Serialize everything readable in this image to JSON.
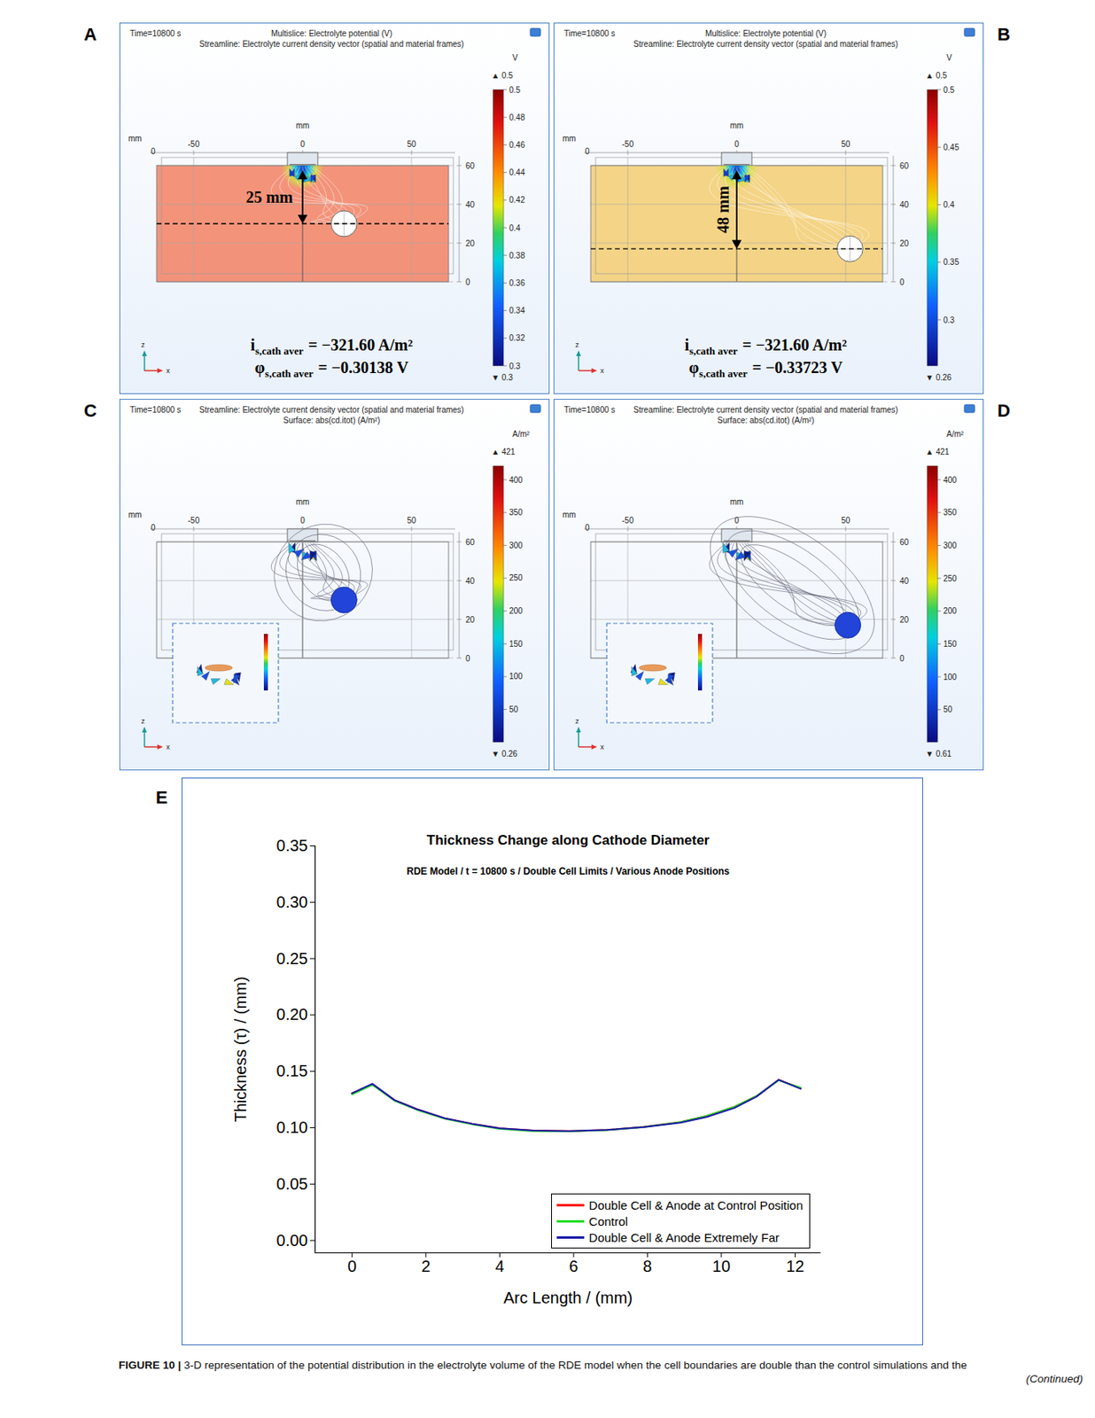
{
  "figure": {
    "panels": [
      {
        "letter": "A",
        "time": "Time=10800 s",
        "title_lines": [
          "Multislice: Electrolyte potential (V)",
          "Streamline: Electrolyte current density vector (spatial and material frames)"
        ],
        "x_axis": {
          "label": "mm",
          "ticks": [
            -50,
            0,
            50
          ]
        },
        "corner": {
          "label": "mm",
          "tick": 0
        },
        "z_ticks": [
          0,
          20,
          40,
          60
        ],
        "colorbar": {
          "unit": "V",
          "max": 0.5,
          "max_label": "▲ 0.5",
          "min": 0.3,
          "min_label": "▼ 0.3",
          "ticks": [
            0.3,
            0.32,
            0.34,
            0.36,
            0.38,
            0.4,
            0.42,
            0.44,
            0.46,
            0.48,
            0.5
          ]
        },
        "triad": [
          "z",
          "x"
        ],
        "distance": "25 mm",
        "equations": [
          {
            "symbol": "i",
            "subscript": "s,cath aver",
            "text": "= −321.60 A/m²"
          },
          {
            "symbol": "φ",
            "subscript": "s,cath aver",
            "text": "= −0.30138 V"
          }
        ]
      },
      {
        "letter": "B",
        "time": "Time=10800 s",
        "title_lines": [
          "Multislice: Electrolyte potential (V)",
          "Streamline: Electrolyte current density vector (spatial and material frames)"
        ],
        "x_axis": {
          "label": "mm",
          "ticks": [
            -50,
            0,
            50
          ]
        },
        "corner": {
          "label": "mm",
          "tick": 0
        },
        "z_ticks": [
          0,
          20,
          40,
          60
        ],
        "colorbar": {
          "unit": "V",
          "max": 0.5,
          "max_label": "▲ 0.5",
          "min": 0.26,
          "min_label": "▼ 0.26",
          "ticks": [
            0.3,
            0.35,
            0.4,
            0.45,
            0.5
          ]
        },
        "triad": [
          "z",
          "x"
        ],
        "distance": "48 mm",
        "equations": [
          {
            "symbol": "i",
            "subscript": "s,cath aver",
            "text": "= −321.60 A/m²"
          },
          {
            "symbol": "φ",
            "subscript": "s,cath aver",
            "text": "= −0.33723 V"
          }
        ]
      },
      {
        "letter": "C",
        "time": "Time=10800 s",
        "title_lines": [
          "Streamline: Electrolyte current density vector (spatial and material frames)",
          "Surface: abs(cd.itot) (A/m²)"
        ],
        "x_axis": {
          "label": "mm",
          "ticks": [
            -50,
            0,
            50
          ]
        },
        "corner": {
          "label": "mm",
          "tick": 0
        },
        "z_ticks": [
          0,
          20,
          40,
          60
        ],
        "colorbar": {
          "unit": "A/m²",
          "max": 421,
          "max_label": "▲ 421",
          "min": 0.26,
          "min_label": "▼ 0.26",
          "ticks": [
            50,
            100,
            150,
            200,
            250,
            300,
            350,
            400
          ]
        },
        "triad": [
          "z",
          "x"
        ]
      },
      {
        "letter": "D",
        "time": "Time=10800 s",
        "title_lines": [
          "Streamline: Electrolyte current density vector (spatial and material frames)",
          "Surface: abs(cd.itot) (A/m²)"
        ],
        "x_axis": {
          "label": "mm",
          "ticks": [
            -50,
            0,
            50
          ]
        },
        "corner": {
          "label": "mm",
          "tick": 0
        },
        "z_ticks": [
          0,
          20,
          40,
          60
        ],
        "colorbar": {
          "unit": "A/m²",
          "max": 421,
          "max_label": "▲ 421",
          "min": 0.61,
          "min_label": "▼ 0.61",
          "ticks": [
            50,
            100,
            150,
            200,
            250,
            300,
            350,
            400
          ]
        },
        "triad": [
          "z",
          "x"
        ]
      }
    ],
    "chart_letter": "E",
    "caption": {
      "label": "FIGURE 10 |",
      "text": "3-D representation of the potential distribution in the electrolyte volume of the RDE model when the cell boundaries are double than the control simulations and the",
      "continued": "(Continued)"
    }
  },
  "chart_data": {
    "type": "line",
    "title": "Thickness Change along Cathode Diameter",
    "subtitle": "RDE Model / t = 10800 s / Double Cell Limits / Various Anode Positions",
    "x_label": "Arc Length / (mm)",
    "y_label": "Thickness (τ) / (mm)",
    "x": [
      0,
      0.55,
      1.15,
      1.75,
      2.5,
      3.25,
      4.0,
      4.9,
      5.9,
      6.9,
      7.9,
      8.9,
      9.6,
      10.35,
      10.95,
      11.55,
      12.15
    ],
    "series": [
      {
        "name": "Double Cell & Anode at Control Position",
        "color": "#ff0000",
        "values": [
          0.1305,
          0.1385,
          0.1245,
          0.1165,
          0.1085,
          0.1035,
          0.0995,
          0.0975,
          0.097,
          0.098,
          0.1008,
          0.105,
          0.1105,
          0.1185,
          0.128,
          0.1425,
          0.135
        ]
      },
      {
        "name": "Control",
        "color": "#22dd22",
        "values": [
          0.1295,
          0.138,
          0.124,
          0.116,
          0.108,
          0.103,
          0.099,
          0.097,
          0.0968,
          0.0978,
          0.1005,
          0.105,
          0.1105,
          0.1185,
          0.128,
          0.142,
          0.1355
        ]
      },
      {
        "name": "Double Cell & Anode Extremely Far",
        "color": "#1a1aa6",
        "values": [
          0.1305,
          0.139,
          0.1245,
          0.1165,
          0.1085,
          0.1035,
          0.0995,
          0.0975,
          0.097,
          0.098,
          0.1005,
          0.1045,
          0.1095,
          0.1175,
          0.1275,
          0.1425,
          0.1345
        ]
      }
    ],
    "xlim": [
      -1,
      12.7
    ],
    "ylim": [
      -0.011,
      0.35
    ],
    "xticks": [
      0,
      2,
      4,
      6,
      8,
      10,
      12
    ],
    "yticks": [
      {
        "value": 0,
        "label": "0.00"
      },
      0.05,
      {
        "value": 0.1,
        "label": "0.10"
      },
      0.15,
      {
        "value": 0.2,
        "label": "0.20"
      },
      0.25,
      {
        "value": 0.3,
        "label": "0.30"
      },
      0.35
    ],
    "legend": "lower right"
  }
}
